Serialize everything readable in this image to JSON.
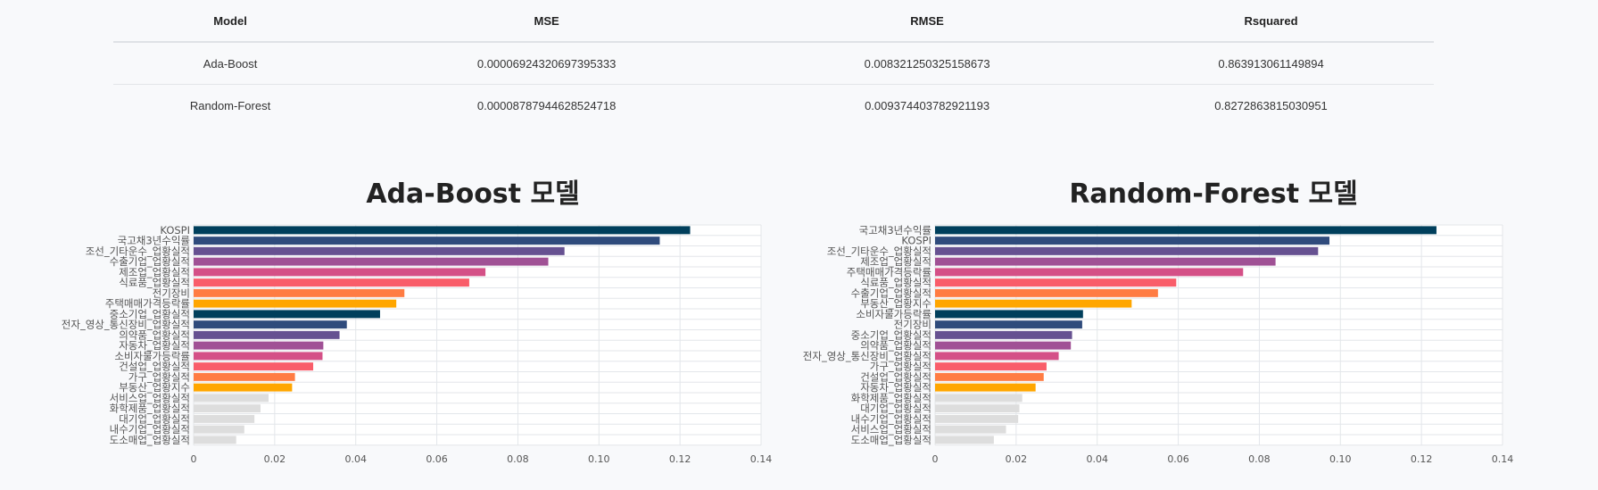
{
  "table": {
    "columns": [
      "Model",
      "MSE",
      "RMSE",
      "Rsquared"
    ],
    "rows": [
      [
        "Ada-Boost",
        "0.00006924320697395333",
        "0.008321250325158673",
        "0.863913061149894"
      ],
      [
        "Random-Forest",
        "0.00008787944628524718",
        "0.009374403782921193",
        "0.8272863815030951"
      ]
    ]
  },
  "chart_data": [
    {
      "type": "bar",
      "orientation": "horizontal",
      "title": "Ada-Boost 모델",
      "xlim": [
        0,
        0.14
      ],
      "xticks": [
        "0",
        "0.02",
        "0.04",
        "0.06",
        "0.08",
        "0.10",
        "0.12",
        "0.14"
      ],
      "grid": true,
      "categories": [
        "KOSPI",
        "국고채3년수익률",
        "조선_기타운수_업황실적",
        "수출기업_업황실적",
        "제조업_업황실적",
        "식료품_업황실적",
        "전기장비",
        "주택매매가격등락률",
        "중소기업_업황실적",
        "전자_영상_통신장비_업황실적",
        "의약품_업황실적",
        "자동차_업황실적",
        "소비자물가등락률",
        "건설업_업황실적",
        "가구_업황실적",
        "부동산_업황지수",
        "서비스업_업황실적",
        "화학제품_업황실적",
        "대기업_업황실적",
        "내수기업_업황실적",
        "도소매업_업황실적"
      ],
      "values": [
        0.1225,
        0.115,
        0.0915,
        0.0875,
        0.072,
        0.068,
        0.052,
        0.05,
        0.046,
        0.0378,
        0.036,
        0.032,
        0.0318,
        0.0295,
        0.025,
        0.0243,
        0.0185,
        0.0165,
        0.015,
        0.0125,
        0.0105
      ],
      "colors": [
        "#003f5c",
        "#2f4b7c",
        "#665191",
        "#a05195",
        "#d45087",
        "#f95d6a",
        "#ff7c43",
        "#ffa600",
        "#003f5c",
        "#2f4b7c",
        "#665191",
        "#a05195",
        "#d45087",
        "#f95d6a",
        "#ff7c43",
        "#ffa600",
        "#dddddd",
        "#dddddd",
        "#dddddd",
        "#dddddd",
        "#dddddd"
      ]
    },
    {
      "type": "bar",
      "orientation": "horizontal",
      "title": "Random-Forest 모델",
      "xlim": [
        0,
        0.14
      ],
      "xticks": [
        "0",
        "0.02",
        "0.04",
        "0.06",
        "0.08",
        "0.10",
        "0.12",
        "0.14"
      ],
      "grid": true,
      "categories": [
        "국고채3년수익률",
        "KOSPI",
        "조선_기타운수_업황실적",
        "제조업_업황실적",
        "주택매매가격등락률",
        "식료품_업황실적",
        "수출기업_업황실적",
        "부동산_업황지수",
        "소비자물가등락률",
        "전기장비",
        "중소기업_업황실적",
        "의약품_업황실적",
        "전자_영상_통신장비_업황실적",
        "가구_업황실적",
        "건설업_업황실적",
        "자동차_업황실적",
        "화학제품_업황실적",
        "대기업_업황실적",
        "내수기업_업황실적",
        "서비스업_업황실적",
        "도소매업_업황실적"
      ],
      "values": [
        0.1237,
        0.0973,
        0.0945,
        0.084,
        0.076,
        0.0595,
        0.055,
        0.0485,
        0.0365,
        0.0363,
        0.0338,
        0.0335,
        0.0305,
        0.0275,
        0.0268,
        0.0248,
        0.0215,
        0.0208,
        0.0205,
        0.0175,
        0.0145
      ],
      "colors": [
        "#003f5c",
        "#2f4b7c",
        "#665191",
        "#a05195",
        "#d45087",
        "#f95d6a",
        "#ff7c43",
        "#ffa600",
        "#003f5c",
        "#2f4b7c",
        "#665191",
        "#a05195",
        "#d45087",
        "#f95d6a",
        "#ff7c43",
        "#ffa600",
        "#dddddd",
        "#dddddd",
        "#dddddd",
        "#dddddd",
        "#dddddd"
      ]
    }
  ]
}
